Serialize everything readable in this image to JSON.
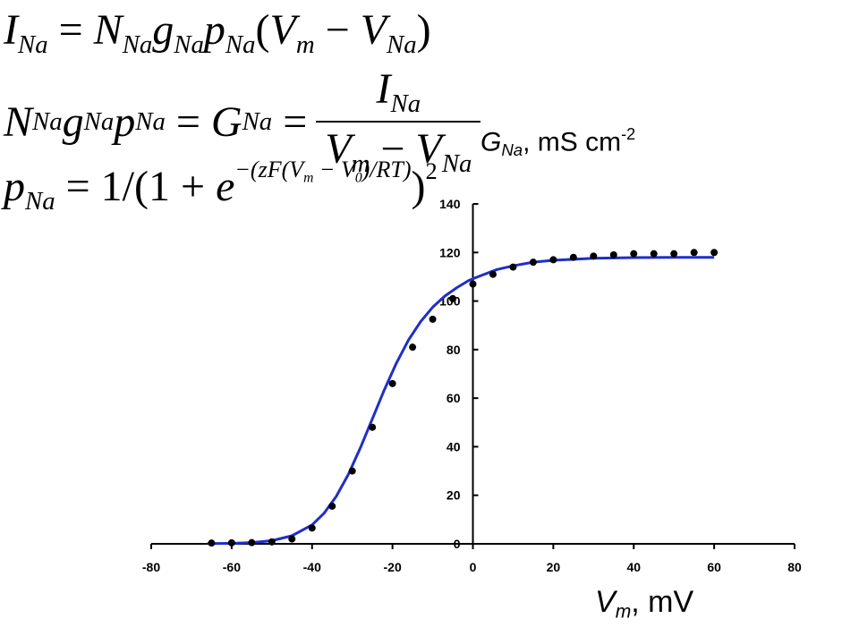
{
  "equations": {
    "eq1": {
      "lhs": "I",
      "lhs_sub": "Na",
      "rhs": "= N_Na g_Na p_Na (V_m − V_Na)"
    },
    "eq2": {
      "lhs": "N_Na g_Na p_Na = G_Na =",
      "numerator": "I_Na",
      "denominator": "V_m − V_Na"
    },
    "eq3": {
      "text": "p_Na = 1/(1 + e^(−(zF(V_m − V_0)/RT)))^2"
    }
  },
  "chart_data": {
    "type": "scatter",
    "title": "",
    "ylabel": "G_Na, mS cm^-2",
    "xlabel": "V_m, mV",
    "xlim": [
      -80,
      80
    ],
    "ylim": [
      0,
      140
    ],
    "xticks": [
      -80,
      -60,
      -40,
      -20,
      0,
      20,
      40,
      60,
      80
    ],
    "yticks": [
      0,
      20,
      40,
      60,
      80,
      100,
      120,
      140
    ],
    "grid": false,
    "legend": "none",
    "series": [
      {
        "kind": "points",
        "color": "#000000",
        "x": [
          -65,
          -60,
          -55,
          -50,
          -45,
          -40,
          -35,
          -30,
          -25,
          -20,
          -15,
          -10,
          -5,
          0,
          5,
          10,
          15,
          20,
          25,
          30,
          35,
          40,
          45,
          50,
          55,
          60
        ],
        "y": [
          0.3,
          0.4,
          0.5,
          0.8,
          2,
          6.5,
          15.5,
          30,
          48,
          66,
          81,
          92.5,
          101,
          107,
          111,
          114,
          116,
          117,
          118,
          118.5,
          119,
          119.5,
          119.5,
          119.5,
          120,
          120
        ]
      },
      {
        "kind": "fit-line",
        "color": "#1f2fc8",
        "x": [
          -66,
          -60,
          -55,
          -50,
          -45,
          -40,
          -37,
          -34,
          -31,
          -28,
          -25,
          -22,
          -19,
          -16,
          -13,
          -10,
          -7,
          -4,
          -1,
          2,
          6,
          10,
          15,
          20,
          30,
          40,
          50,
          60
        ],
        "y": [
          0.1,
          0.2,
          0.5,
          1.3,
          3.3,
          7.8,
          12.6,
          19.5,
          28.5,
          39.5,
          51.5,
          63.5,
          74.5,
          84,
          91.5,
          97.5,
          102,
          105.5,
          108.5,
          110.5,
          113,
          114.5,
          116,
          116.8,
          117.6,
          117.9,
          118,
          118
        ]
      }
    ]
  }
}
